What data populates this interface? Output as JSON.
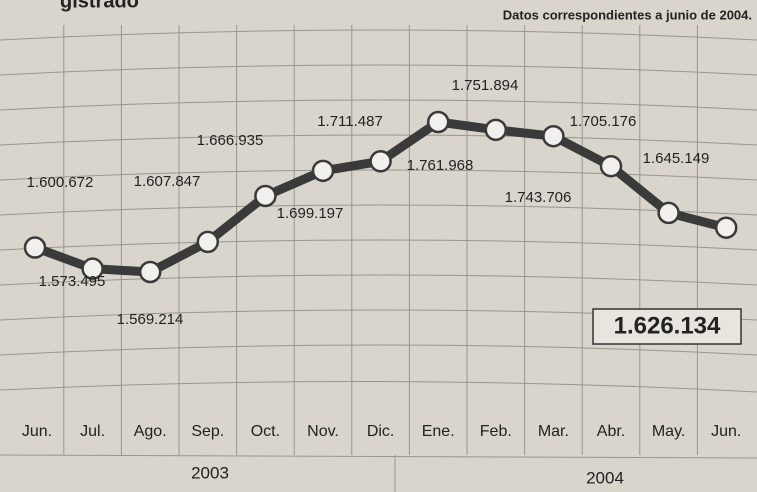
{
  "chart_data": {
    "type": "line",
    "title": "gistrado",
    "subtitle": "Datos correspondientes a junio de 2004.",
    "categories": [
      "Jun.",
      "Jul.",
      "Ago.",
      "Sep.",
      "Oct.",
      "Nov.",
      "Dic.",
      "Ene.",
      "Feb.",
      "Mar.",
      "Abr.",
      "May.",
      "Jun."
    ],
    "groups": [
      "2003",
      "2004"
    ],
    "values": [
      1600672,
      1573495,
      1569214,
      1607847,
      1666935,
      1699197,
      1711487,
      1761968,
      1751894,
      1743706,
      1705176,
      1645149,
      1626134
    ],
    "value_labels": [
      "1.600.672",
      "1.573.495",
      "1.569.214",
      "1.607.847",
      "1.666.935",
      "1.699.197",
      "1.711.487",
      "1.761.968",
      "1.751.894",
      "1.743.706",
      "1.705.176",
      "1.645.149",
      "1.626.134"
    ],
    "color": "#3a3a3a"
  }
}
